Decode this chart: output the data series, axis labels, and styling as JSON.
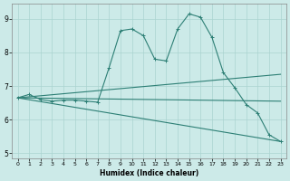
{
  "xlabel": "Humidex (Indice chaleur)",
  "bg_color": "#cceae8",
  "grid_color": "#aad4d0",
  "line_color": "#2d7f75",
  "xlim": [
    -0.5,
    23.5
  ],
  "ylim": [
    4.85,
    9.45
  ],
  "xticks": [
    0,
    1,
    2,
    3,
    4,
    5,
    6,
    7,
    8,
    9,
    10,
    11,
    12,
    13,
    14,
    15,
    16,
    17,
    18,
    19,
    20,
    21,
    22,
    23
  ],
  "yticks": [
    5,
    6,
    7,
    8,
    9
  ],
  "line1_x": [
    0,
    1,
    2,
    3,
    4,
    5,
    6,
    7,
    8,
    9,
    10,
    11,
    12,
    13,
    14,
    15,
    16,
    17,
    18,
    19,
    20,
    21,
    22,
    23
  ],
  "line1_y": [
    6.65,
    6.75,
    6.6,
    6.55,
    6.58,
    6.58,
    6.55,
    6.52,
    7.55,
    8.65,
    8.7,
    8.5,
    7.8,
    7.75,
    8.7,
    9.15,
    9.05,
    8.45,
    7.4,
    6.95,
    6.45,
    6.2,
    5.55,
    5.35
  ],
  "line1_markers": [
    0,
    1,
    2,
    3,
    4,
    5,
    6,
    7,
    8,
    9,
    10,
    11,
    12,
    13,
    14,
    15,
    16,
    17,
    18,
    19,
    20,
    21,
    22,
    23
  ],
  "line2_x": [
    0,
    23
  ],
  "line2_y": [
    6.65,
    7.35
  ],
  "line3_x": [
    0,
    23
  ],
  "line3_y": [
    6.65,
    6.55
  ],
  "line4_x": [
    0,
    23
  ],
  "line4_y": [
    6.65,
    5.35
  ]
}
